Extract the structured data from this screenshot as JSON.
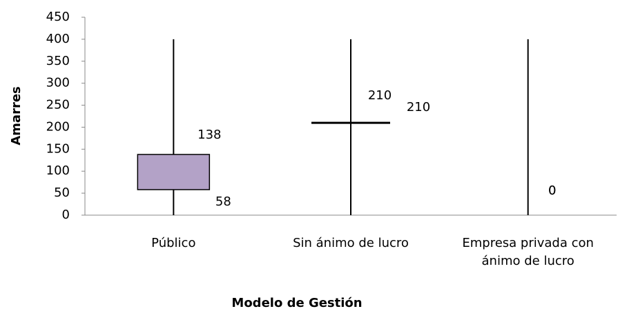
{
  "chart_data": {
    "type": "box",
    "categories": [
      "Público",
      "Sin ánimo de lucro",
      "Empresa privada con ánimo de lucro"
    ],
    "low": [
      0,
      0,
      0
    ],
    "q1": [
      58,
      210,
      0
    ],
    "q3": [
      138,
      210,
      0
    ],
    "high": [
      400,
      400,
      400
    ],
    "color": "#b3a2c7",
    "ylim": [
      0,
      450
    ],
    "yticks": [
      0,
      50,
      100,
      150,
      200,
      250,
      300,
      350,
      400,
      450
    ],
    "ylabel": "Amarres",
    "xlabel": "Modelo de Gestión"
  }
}
